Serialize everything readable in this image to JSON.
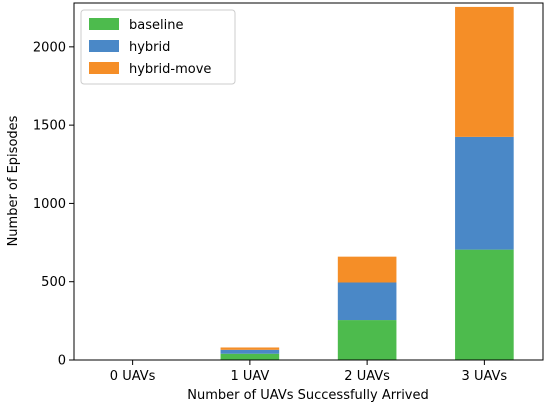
{
  "chart_data": {
    "type": "bar",
    "stacked": true,
    "title": "",
    "xlabel": "Number of UAVs Successfully Arrived",
    "ylabel": "Number of Episodes",
    "categories": [
      "0 UAVs",
      "1 UAV",
      "2 UAVs",
      "3 UAVs"
    ],
    "series": [
      {
        "name": "baseline",
        "color": "#4dbb4d",
        "values": [
          0,
          40,
          255,
          705
        ]
      },
      {
        "name": "hybrid",
        "color": "#4a88c7",
        "values": [
          0,
          25,
          240,
          720
        ]
      },
      {
        "name": "hybrid-move",
        "color": "#f58e27",
        "values": [
          0,
          15,
          165,
          830
        ]
      }
    ],
    "ylim": [
      0,
      2280
    ],
    "yticks": [
      0,
      500,
      1000,
      1500,
      2000
    ],
    "grid": false,
    "legend_position": "top-left"
  }
}
